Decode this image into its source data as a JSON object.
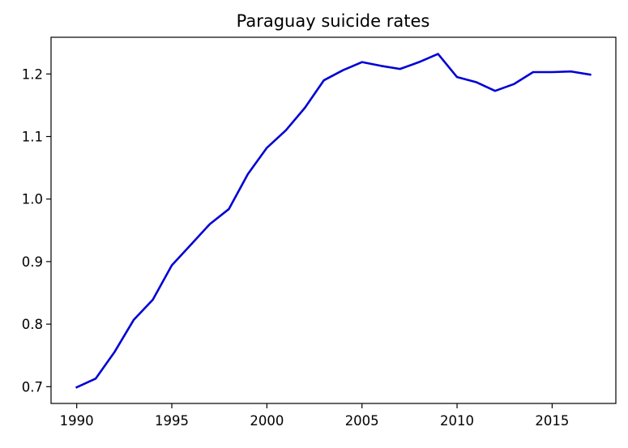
{
  "chart_data": {
    "type": "line",
    "title": "Paraguay suicide rates",
    "xlabel": "",
    "ylabel": "",
    "x": [
      1990,
      1991,
      1992,
      1993,
      1994,
      1995,
      1996,
      1997,
      1998,
      1999,
      2000,
      2001,
      2002,
      2003,
      2004,
      2005,
      2006,
      2007,
      2008,
      2009,
      2010,
      2011,
      2012,
      2013,
      2014,
      2015,
      2016,
      2017
    ],
    "series": [
      {
        "values": [
          0.699,
          0.713,
          0.756,
          0.807,
          0.839,
          0.894,
          0.927,
          0.96,
          0.984,
          1.04,
          1.082,
          1.11,
          1.146,
          1.19,
          1.206,
          1.219,
          1.213,
          1.208,
          1.219,
          1.232,
          1.195,
          1.187,
          1.173,
          1.184,
          1.203,
          1.203,
          1.204,
          1.199
        ],
        "color": "#0000d5"
      }
    ],
    "xlim": [
      1989.35,
      1987.65
    ],
    "ylim": [
      0.6732,
      1.2587
    ],
    "x_ticks": [
      1990,
      1995,
      2000,
      2005,
      2010,
      2015
    ],
    "x_tick_labels": [
      "1990",
      "1995",
      "2000",
      "2005",
      "2010",
      "2015"
    ],
    "y_ticks": [
      0.7,
      0.8,
      0.9,
      1.0,
      1.1,
      1.2
    ],
    "y_tick_labels": [
      "0.7",
      "0.8",
      "0.9",
      "1.0",
      "1.1",
      "1.2"
    ],
    "grid": false,
    "legend": "none"
  }
}
